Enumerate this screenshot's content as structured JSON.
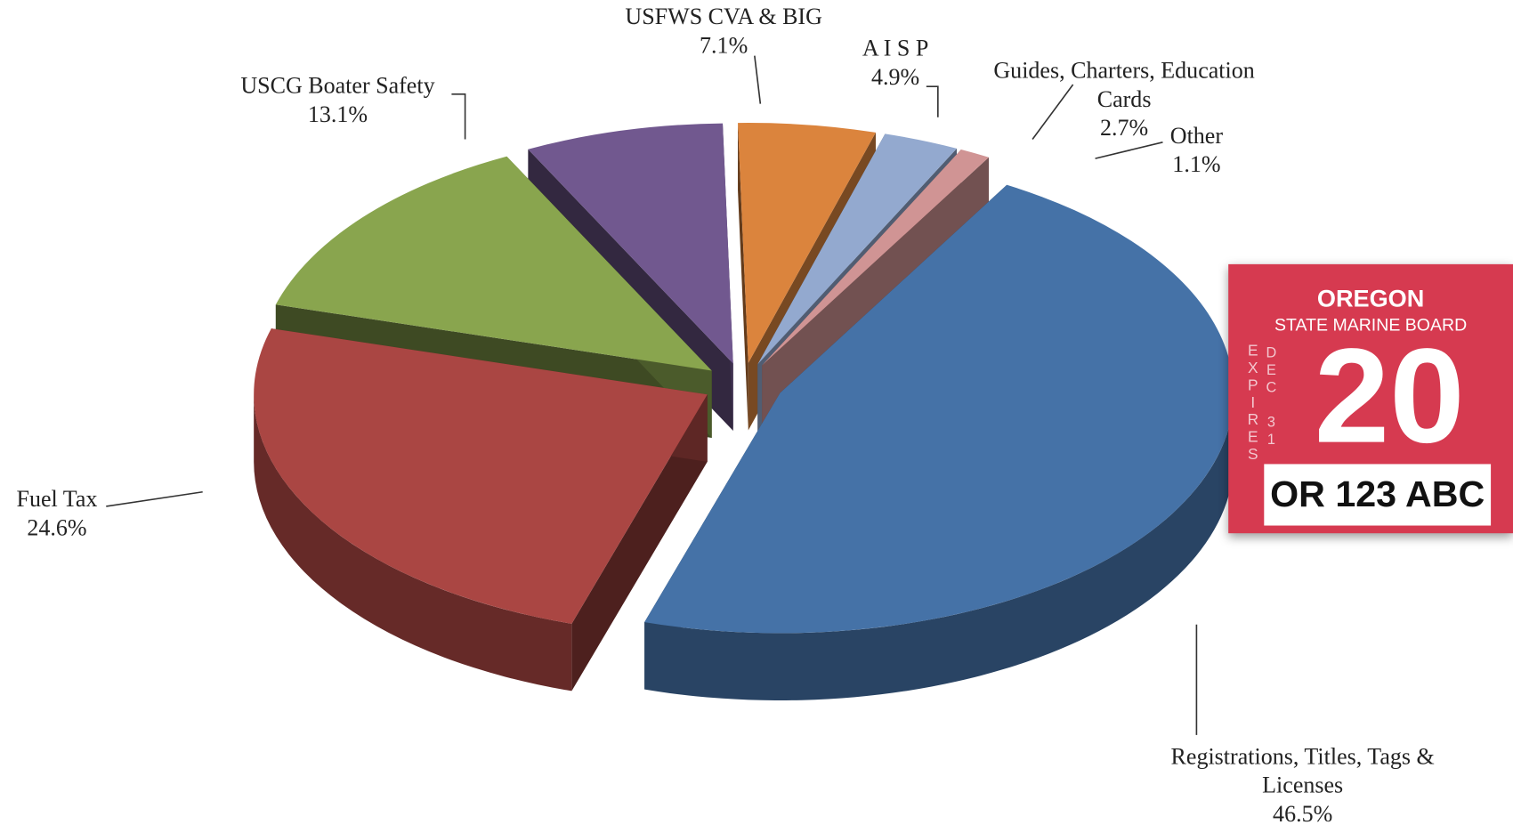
{
  "chart_data": {
    "type": "pie",
    "categories": [
      "Registrations, Titles, Tags & Licenses",
      "Fuel Tax",
      "USCG Boater Safety",
      "USFWS CVA & BIG",
      "A I S P",
      "Guides, Charters, Education Cards",
      "Other"
    ],
    "values": [
      46.5,
      24.6,
      13.1,
      7.1,
      4.9,
      2.7,
      1.1
    ],
    "value_labels": [
      "46.5%",
      "24.6%",
      "13.1%",
      "7.1%",
      "4.9%",
      "2.7%",
      "1.1%"
    ],
    "colors": [
      "#4572a7",
      "#aa4643",
      "#89a54e",
      "#71588f",
      "#db843d",
      "#93a9cf",
      "#d09494"
    ]
  },
  "sticker": {
    "title": "OREGON",
    "subtitle": "STATE MARINE BOARD",
    "expires": "EXPIRES",
    "date": "DEC 31",
    "year": "20",
    "plate": "OR 123 ABC"
  }
}
